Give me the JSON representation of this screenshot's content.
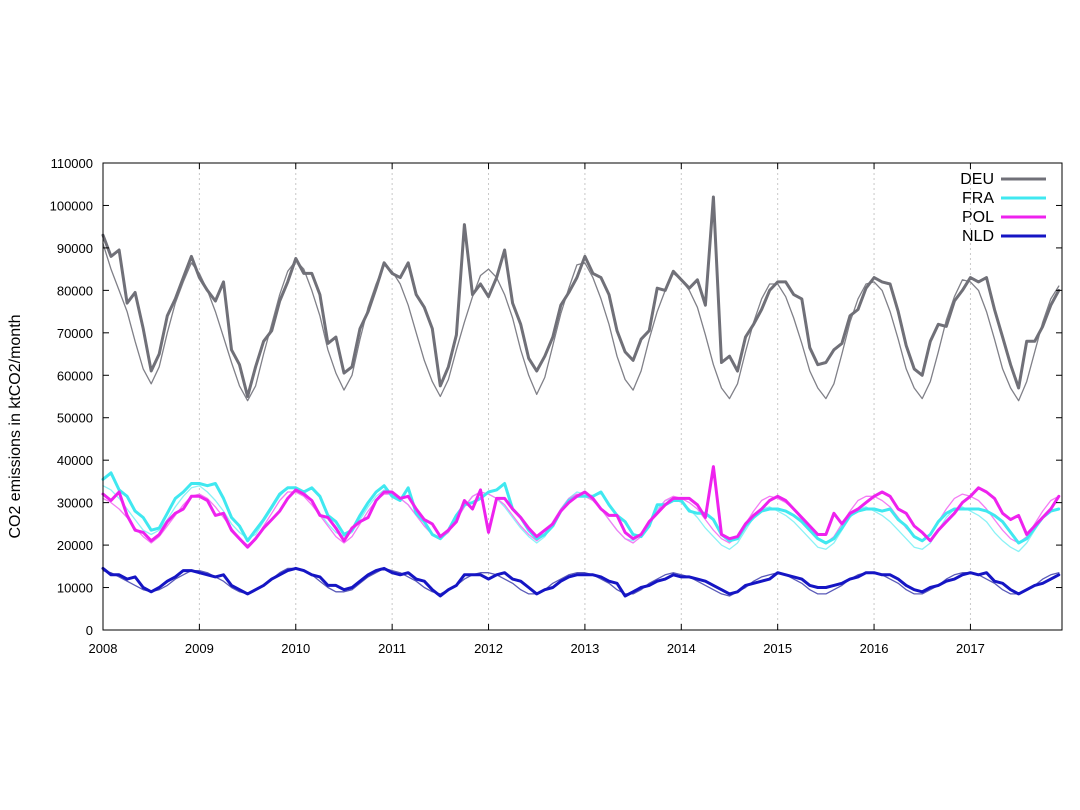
{
  "chart_data": {
    "type": "line",
    "ylabel": "CO2 emissions in ktCO2/month",
    "xlabel": "",
    "ylim": [
      0,
      110000
    ],
    "yticks": [
      0,
      10000,
      20000,
      30000,
      40000,
      50000,
      60000,
      70000,
      80000,
      90000,
      100000,
      110000
    ],
    "xlim": [
      2008.0,
      2017.95
    ],
    "xticks": [
      2008,
      2009,
      2010,
      2011,
      2012,
      2013,
      2014,
      2015,
      2016,
      2017
    ],
    "xtick_labels": [
      "2008",
      "2009",
      "2010",
      "2011",
      "2012",
      "2013",
      "2014",
      "2015",
      "2016",
      "2017"
    ],
    "grid": "vertical-dotted",
    "legend_position": "top-right",
    "x_start": "2008-01",
    "x_step": "month",
    "series": [
      {
        "name": "DEU",
        "color": "#707078",
        "legend": true,
        "values": [
          93000,
          88000,
          89500,
          77000,
          79500,
          71000,
          61000,
          65000,
          74000,
          78000,
          83000,
          88000,
          83000,
          80000,
          77500,
          82000,
          66000,
          62500,
          55000,
          62000,
          68000,
          70500,
          77500,
          82000,
          87500,
          84000,
          84000,
          79000,
          67500,
          69000,
          60500,
          62000,
          71000,
          75000,
          80500,
          86500,
          84000,
          83000,
          86500,
          79000,
          76000,
          71000,
          57500,
          62000,
          69500,
          95500,
          79000,
          81500,
          78500,
          83000,
          89500,
          77000,
          72000,
          64000,
          61000,
          64500,
          69000,
          76500,
          79500,
          83000,
          88000,
          84000,
          83000,
          79000,
          70500,
          65500,
          63500,
          68500,
          70500,
          80500,
          80000,
          84500,
          82500,
          80500,
          82500,
          76500,
          102000,
          63000,
          64500,
          61000,
          69000,
          72000,
          75500,
          80000,
          82000,
          82000,
          79000,
          78000,
          66500,
          62500,
          63000,
          66000,
          67500,
          74000,
          75500,
          80500,
          83000,
          82000,
          81500,
          75000,
          67000,
          61500,
          60000,
          68000,
          72000,
          71500,
          77500,
          80000,
          83000,
          82000,
          83000,
          75500,
          69000,
          62500,
          57000,
          68000,
          68000,
          71500,
          76500,
          80000
        ]
      },
      {
        "name": "DEU",
        "color": "#808088",
        "legend": false,
        "values": [
          91000,
          85000,
          80000,
          75000,
          68000,
          61500,
          58000,
          62000,
          70000,
          77000,
          82000,
          86500,
          84000,
          80000,
          75000,
          69000,
          63000,
          57500,
          54000,
          57500,
          65000,
          72000,
          79000,
          84500,
          87000,
          85000,
          80000,
          74000,
          66000,
          60500,
          56500,
          60000,
          68500,
          76000,
          81500,
          86000,
          84500,
          81500,
          76500,
          70000,
          63500,
          58500,
          55000,
          59000,
          66000,
          72500,
          78500,
          83500,
          85000,
          83000,
          79000,
          73500,
          66000,
          60000,
          55500,
          59500,
          67000,
          74500,
          80500,
          86000,
          86500,
          83000,
          78000,
          72000,
          64500,
          59000,
          56500,
          61000,
          68500,
          75000,
          80000,
          84000,
          82500,
          80000,
          76000,
          69500,
          62500,
          57000,
          54500,
          58000,
          65500,
          72500,
          78000,
          81500,
          81500,
          78500,
          73500,
          67500,
          61000,
          57000,
          54500,
          58000,
          65000,
          72500,
          78000,
          81500,
          82000,
          80000,
          75000,
          68500,
          61500,
          57000,
          54500,
          58500,
          65500,
          73000,
          78500,
          82500,
          82000,
          80000,
          75000,
          68500,
          61500,
          57000,
          54000,
          58500,
          65500,
          72500,
          78000,
          81000
        ]
      },
      {
        "name": "FRA",
        "color": "#40e8f0",
        "legend": true,
        "values": [
          35500,
          37000,
          33000,
          31500,
          28000,
          26500,
          23500,
          24000,
          27500,
          31000,
          32500,
          34500,
          34500,
          34000,
          34500,
          31000,
          26500,
          24500,
          21000,
          23500,
          26000,
          29000,
          32000,
          33500,
          33500,
          32500,
          33500,
          31500,
          27000,
          25500,
          22500,
          23500,
          27000,
          30000,
          32500,
          34000,
          31500,
          30500,
          33500,
          27500,
          25500,
          22500,
          21500,
          23500,
          27000,
          29500,
          30000,
          31000,
          32500,
          33000,
          34500,
          28500,
          26500,
          23500,
          21500,
          22500,
          24500,
          28000,
          30500,
          31500,
          31500,
          31500,
          32500,
          29500,
          27000,
          25500,
          22500,
          22000,
          24500,
          29500,
          29500,
          30500,
          30500,
          28000,
          27500,
          27500,
          26000,
          22500,
          21000,
          21500,
          24500,
          26500,
          28000,
          28500,
          28500,
          28000,
          27000,
          25500,
          23500,
          21500,
          20500,
          21500,
          24000,
          27000,
          28000,
          28500,
          28500,
          28000,
          28500,
          26000,
          24500,
          22000,
          21000,
          22500,
          25500,
          27500,
          28500,
          28500,
          28500,
          28500,
          28000,
          27000,
          25500,
          23000,
          20500,
          21500,
          24000,
          26500,
          28000,
          28500
        ]
      },
      {
        "name": "FRA",
        "color": "#8af2f6",
        "legend": false,
        "values": [
          34000,
          33000,
          31000,
          28500,
          26000,
          23500,
          22500,
          23500,
          26000,
          29000,
          31500,
          33500,
          34000,
          32500,
          30500,
          28000,
          25000,
          23000,
          21500,
          22500,
          25500,
          28500,
          31500,
          33500,
          33500,
          32500,
          30500,
          27500,
          25000,
          23000,
          22000,
          23000,
          26000,
          29000,
          31500,
          33000,
          32500,
          31000,
          29500,
          27000,
          24500,
          22500,
          21500,
          23000,
          26000,
          29000,
          31500,
          32500,
          32000,
          31000,
          29000,
          26500,
          24000,
          22000,
          20500,
          22000,
          25000,
          28500,
          31000,
          32500,
          32000,
          30500,
          28500,
          26000,
          23500,
          21500,
          21000,
          22500,
          25500,
          28500,
          30500,
          31000,
          30000,
          28500,
          26500,
          24000,
          22000,
          20000,
          19000,
          20500,
          23500,
          26500,
          28500,
          29000,
          28000,
          27000,
          25500,
          23500,
          21500,
          19500,
          19000,
          20500,
          23500,
          26500,
          28500,
          29000,
          28000,
          27000,
          25500,
          23500,
          21500,
          19500,
          19000,
          20500,
          23500,
          26500,
          28500,
          29000,
          28000,
          27000,
          25500,
          23000,
          21000,
          19500,
          18500,
          20500,
          23500,
          26500,
          28000,
          28500
        ]
      },
      {
        "name": "POL",
        "color": "#ee22ee",
        "legend": true,
        "values": [
          32000,
          30500,
          32500,
          27000,
          23500,
          23000,
          21000,
          22500,
          25500,
          27500,
          28500,
          31500,
          31500,
          30500,
          27000,
          27500,
          23500,
          21500,
          19500,
          21500,
          24000,
          26000,
          28000,
          31000,
          33000,
          32000,
          30500,
          27000,
          26500,
          24000,
          21000,
          24000,
          25500,
          26500,
          30500,
          32500,
          32500,
          31000,
          31500,
          28500,
          26000,
          25000,
          22000,
          23500,
          25500,
          30500,
          28500,
          33000,
          23000,
          31000,
          31000,
          28500,
          26500,
          24000,
          22000,
          23500,
          25000,
          28000,
          30000,
          31500,
          32500,
          31000,
          28500,
          27000,
          27000,
          23000,
          21500,
          22500,
          25500,
          27500,
          29500,
          31000,
          31000,
          31000,
          29500,
          26500,
          38500,
          22500,
          21500,
          22000,
          25000,
          27000,
          28500,
          30500,
          31500,
          30500,
          28500,
          26500,
          24500,
          22500,
          22500,
          27500,
          25000,
          27500,
          28500,
          30000,
          31500,
          32500,
          31500,
          28500,
          27500,
          24500,
          23000,
          21000,
          23500,
          25500,
          27500,
          30000,
          31500,
          33500,
          32500,
          31000,
          27500,
          26000,
          27000,
          22500,
          24500,
          26500,
          28500,
          31500
        ]
      },
      {
        "name": "POL",
        "color": "#f47cf4",
        "legend": false,
        "values": [
          31000,
          30000,
          28500,
          26500,
          24000,
          22000,
          20500,
          22000,
          24500,
          27000,
          29500,
          31500,
          32000,
          31000,
          29000,
          26500,
          24000,
          21500,
          20000,
          21500,
          24500,
          27500,
          30500,
          32500,
          32500,
          31500,
          29500,
          27000,
          24500,
          22000,
          20500,
          22000,
          25000,
          28000,
          30500,
          32000,
          32000,
          31000,
          29500,
          27000,
          24500,
          22500,
          21500,
          23000,
          26000,
          29000,
          31500,
          32500,
          32000,
          31000,
          29500,
          27000,
          24500,
          22500,
          21000,
          22500,
          25500,
          28500,
          31000,
          32000,
          31500,
          30500,
          28500,
          26000,
          23500,
          21500,
          20500,
          22000,
          25000,
          28000,
          30500,
          31500,
          31000,
          30000,
          28500,
          26000,
          23500,
          21500,
          20500,
          22000,
          25000,
          28000,
          30500,
          31500,
          31000,
          30000,
          28500,
          26000,
          23500,
          21500,
          20500,
          22000,
          25000,
          28000,
          30500,
          31500,
          31500,
          30500,
          29000,
          26500,
          24000,
          22000,
          21000,
          22500,
          25500,
          28500,
          31000,
          32000,
          31500,
          30500,
          28500,
          26000,
          23500,
          21500,
          20500,
          22000,
          25000,
          28000,
          30500,
          31500
        ]
      },
      {
        "name": "NLD",
        "color": "#1515c4",
        "legend": true,
        "values": [
          14500,
          13000,
          13000,
          12000,
          12500,
          10000,
          9000,
          10000,
          11500,
          12500,
          14000,
          14000,
          13500,
          13000,
          12500,
          13000,
          10500,
          9500,
          8500,
          9500,
          10500,
          12000,
          13000,
          14000,
          14500,
          14000,
          13000,
          12500,
          10500,
          10500,
          9500,
          10000,
          11500,
          13000,
          14000,
          14500,
          13500,
          13000,
          13500,
          12000,
          11500,
          9500,
          8000,
          9500,
          10500,
          13000,
          13000,
          13000,
          12000,
          13000,
          13500,
          12000,
          11500,
          10000,
          8500,
          9500,
          10000,
          11500,
          12500,
          13000,
          13000,
          13000,
          12500,
          11500,
          11000,
          8000,
          9000,
          10000,
          10500,
          11500,
          12000,
          13000,
          12500,
          12500,
          12000,
          11500,
          10500,
          9500,
          8500,
          9000,
          10500,
          11000,
          11500,
          12000,
          13500,
          13000,
          12500,
          12000,
          10500,
          10000,
          10000,
          10500,
          11000,
          12000,
          12500,
          13500,
          13500,
          13000,
          13000,
          12000,
          10500,
          9500,
          9000,
          10000,
          10500,
          11500,
          12000,
          13000,
          13500,
          13000,
          13500,
          11500,
          11000,
          9500,
          8500,
          9500,
          10500,
          11000,
          12000,
          13000
        ]
      },
      {
        "name": "NLD",
        "color": "#5a5ab8",
        "legend": false,
        "values": [
          14000,
          13500,
          12500,
          11500,
          10500,
          9500,
          9000,
          9500,
          10500,
          12000,
          13000,
          14000,
          14000,
          13500,
          12500,
          11500,
          10000,
          9000,
          8500,
          9500,
          10500,
          12000,
          13500,
          14500,
          14500,
          14000,
          13000,
          11500,
          10000,
          9000,
          9000,
          9500,
          11000,
          12500,
          13500,
          14500,
          14000,
          13500,
          12500,
          11500,
          10000,
          9000,
          8500,
          9500,
          10500,
          12000,
          13000,
          13500,
          13500,
          13000,
          12000,
          11000,
          9500,
          8500,
          8500,
          9500,
          11000,
          12000,
          13000,
          13500,
          13500,
          13000,
          12000,
          11000,
          9500,
          8500,
          8500,
          9500,
          11000,
          12000,
          13000,
          13500,
          13000,
          12500,
          11500,
          10500,
          9500,
          8500,
          8000,
          9000,
          10000,
          11500,
          12500,
          13000,
          13500,
          13000,
          12000,
          11000,
          9500,
          8500,
          8500,
          9500,
          10500,
          12000,
          13000,
          13500,
          13500,
          13000,
          12000,
          11000,
          9500,
          8500,
          8500,
          9500,
          10500,
          12000,
          13000,
          13500,
          13500,
          13000,
          12000,
          11000,
          9500,
          8500,
          8500,
          9500,
          10500,
          12000,
          13000,
          13500
        ]
      }
    ]
  }
}
